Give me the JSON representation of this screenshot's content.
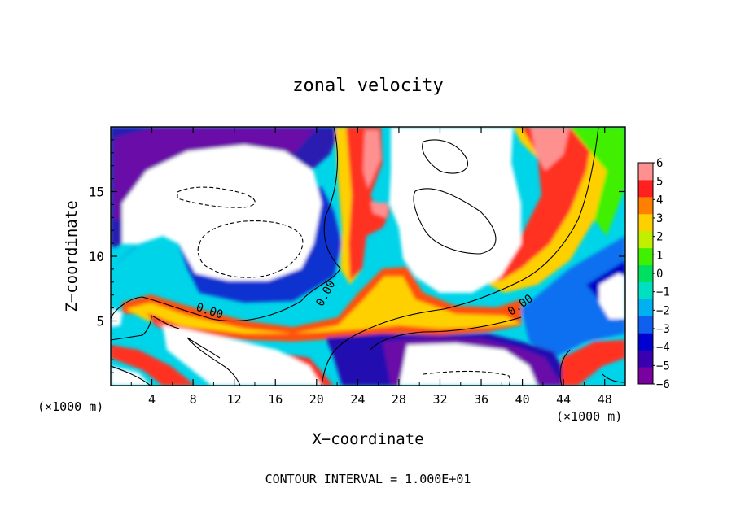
{
  "chart_data": {
    "type": "heatmap",
    "title": "zonal velocity",
    "xlabel": "X−coordinate",
    "ylabel": "Z−coordinate",
    "x_unit_left": "(×1000 m)",
    "x_unit_right": "(×1000 m)",
    "footer": "CONTOUR INTERVAL = 1.000E+01",
    "xlim": [
      0,
      50
    ],
    "ylim": [
      0,
      20
    ],
    "x_ticks": [
      4,
      8,
      12,
      16,
      20,
      24,
      28,
      32,
      36,
      40,
      44,
      48
    ],
    "x_tick_labels": [
      "4",
      "8",
      "12",
      "16",
      "20",
      "24",
      "28",
      "32",
      "36",
      "40",
      "44",
      "48"
    ],
    "y_ticks": [
      5,
      10,
      15
    ],
    "y_tick_labels": [
      "5",
      "10",
      "15"
    ],
    "colorbar": {
      "min": -6,
      "max": 6,
      "tick_labels": [
        "6",
        "5",
        "4",
        "3",
        "2",
        "1",
        "0",
        "−1",
        "−2",
        "−3",
        "−4",
        "−5",
        "−6"
      ],
      "colors": [
        "#7a00a0",
        "#3a00b0",
        "#0000d0",
        "#1060f0",
        "#00b0f0",
        "#00e0c0",
        "#00e060",
        "#40f000",
        "#c0f000",
        "#ffd000",
        "#ff8000",
        "#ff2020",
        "#ff9090"
      ]
    },
    "contour_labels": [
      {
        "text": "0.00",
        "x": 9.5,
        "y": 5.5
      },
      {
        "text": "0.00",
        "x": 21.2,
        "y": 7.0
      },
      {
        "text": "0.00",
        "x": 40.0,
        "y": 6.0
      }
    ]
  }
}
